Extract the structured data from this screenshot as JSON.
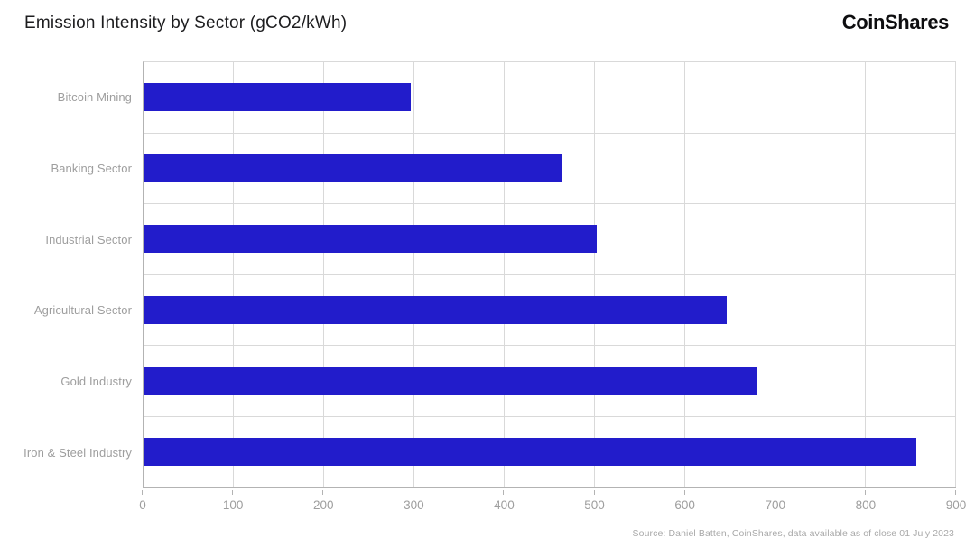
{
  "header": {
    "title": "Emission Intensity by Sector (gCO2/kWh)",
    "logo": "CoinShares"
  },
  "footer": {
    "source": "Source: Daniel Batten, CoinShares, data available as of close 01 July 2023"
  },
  "chart_data": {
    "type": "bar",
    "orientation": "horizontal",
    "title": "Emission Intensity by Sector (gCO2/kWh)",
    "categories": [
      "Bitcoin Mining",
      "Banking Sector",
      "Industrial Sector",
      "Agricultural Sector",
      "Gold Industry",
      "Iron & Steel Industry"
    ],
    "values": [
      296,
      464,
      502,
      646,
      680,
      856
    ],
    "xlabel": "",
    "ylabel": "",
    "xlim": [
      0,
      900
    ],
    "xticks": [
      0,
      100,
      200,
      300,
      400,
      500,
      600,
      700,
      800,
      900
    ],
    "grid": true,
    "legend": "none",
    "colors": {
      "bar": "#221CCB",
      "axis": "#b3b3b3",
      "grid": "#d9d9d9",
      "label": "#9e9e9e"
    }
  }
}
